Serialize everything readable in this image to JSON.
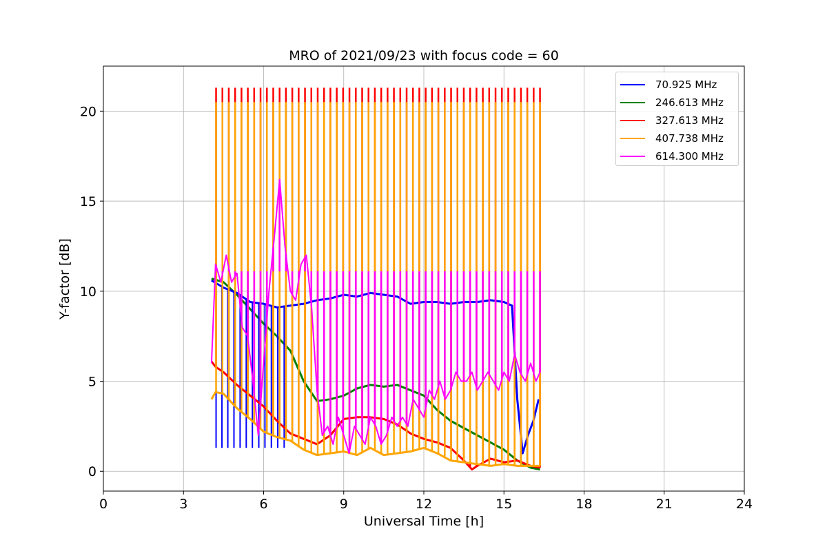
{
  "chart_data": {
    "type": "line",
    "title": "MRO of 2021/09/23 with focus code = 60",
    "xlabel": "Universal Time [h]",
    "ylabel": "Y-factor [dB]",
    "xlim": [
      0,
      24
    ],
    "ylim": [
      -1.1,
      22.5
    ],
    "xticks": [
      0,
      3,
      6,
      9,
      12,
      15,
      18,
      21,
      24
    ],
    "yticks": [
      0,
      5,
      10,
      15,
      20
    ],
    "grid": true,
    "legend_position": "top-right",
    "calibration_pulses": {
      "start": 4.22,
      "end": 16.35,
      "count": 52,
      "peak_dB": {
        "327.613 MHz": 21.3,
        "407.738 MHz": 20.5,
        "614.300 MHz": 11.1
      }
    },
    "series": [
      {
        "name": "70.925 MHz",
        "color": "#0000ff",
        "x": [
          4.05,
          4.5,
          5.0,
          5.5,
          6.0,
          6.5,
          7.0,
          7.5,
          8.0,
          8.5,
          9.0,
          9.5,
          10.0,
          10.5,
          11.0,
          11.5,
          12.0,
          12.5,
          13.0,
          13.5,
          14.0,
          14.5,
          15.0,
          15.3,
          15.5,
          15.7,
          15.9,
          16.1,
          16.3
        ],
        "y": [
          10.6,
          10.2,
          9.9,
          9.4,
          9.3,
          9.1,
          9.2,
          9.3,
          9.5,
          9.6,
          9.8,
          9.7,
          9.9,
          9.8,
          9.7,
          9.3,
          9.4,
          9.4,
          9.3,
          9.4,
          9.4,
          9.5,
          9.4,
          9.2,
          4.0,
          1.0,
          2.0,
          2.8,
          4.0
        ],
        "dips": {
          "x": [
            4.22,
            4.44,
            4.66,
            4.89,
            5.12,
            5.35,
            5.58,
            5.82,
            6.05,
            6.29,
            6.53,
            6.77
          ],
          "y": 1.3
        }
      },
      {
        "name": "246.613 MHz",
        "color": "#008000",
        "x": [
          4.05,
          4.5,
          5.0,
          5.5,
          6.0,
          6.5,
          7.0,
          7.5,
          8.0,
          8.5,
          9.0,
          9.5,
          10.0,
          10.5,
          11.0,
          11.5,
          12.0,
          12.5,
          13.0,
          13.5,
          14.0,
          14.5,
          15.0,
          15.5,
          16.0,
          16.35
        ],
        "y": [
          10.7,
          10.5,
          9.8,
          9.0,
          8.2,
          7.5,
          6.7,
          5.0,
          3.9,
          4.0,
          4.2,
          4.6,
          4.8,
          4.7,
          4.8,
          4.5,
          4.2,
          3.4,
          2.8,
          2.4,
          2.0,
          1.6,
          1.2,
          0.6,
          0.2,
          0.1
        ]
      },
      {
        "name": "327.613 MHz",
        "color": "#ff0000",
        "x": [
          4.05,
          4.2,
          4.5,
          5.0,
          5.5,
          6.0,
          6.5,
          7.0,
          7.5,
          8.0,
          8.5,
          9.0,
          9.5,
          10.0,
          10.5,
          11.0,
          11.5,
          12.0,
          12.5,
          13.0,
          13.5,
          13.8,
          14.0,
          14.5,
          15.0,
          15.5,
          16.0,
          16.35
        ],
        "y": [
          6.1,
          5.8,
          5.5,
          4.8,
          4.2,
          3.6,
          2.8,
          2.1,
          1.8,
          1.5,
          2.0,
          2.9,
          3.0,
          3.0,
          2.9,
          2.6,
          2.1,
          1.8,
          1.6,
          1.3,
          0.6,
          0.1,
          0.3,
          0.7,
          0.5,
          0.6,
          0.3,
          0.2
        ]
      },
      {
        "name": "407.738 MHz",
        "color": "#ffa500",
        "x": [
          4.05,
          4.2,
          4.5,
          5.0,
          5.5,
          6.0,
          6.5,
          7.0,
          7.5,
          8.0,
          8.5,
          9.0,
          9.5,
          10.0,
          10.5,
          11.0,
          11.5,
          12.0,
          12.5,
          13.0,
          13.5,
          14.0,
          14.5,
          15.0,
          15.5,
          16.0,
          16.35
        ],
        "y": [
          4.0,
          4.4,
          4.3,
          3.5,
          2.9,
          2.2,
          1.9,
          1.7,
          1.2,
          0.9,
          1.0,
          1.1,
          0.9,
          1.3,
          0.9,
          1.0,
          1.1,
          1.3,
          1.0,
          0.6,
          0.5,
          0.4,
          0.3,
          0.4,
          0.3,
          0.3,
          0.3
        ]
      },
      {
        "name": "614.300 MHz",
        "color": "#ff00ff",
        "x": [
          4.05,
          4.2,
          4.4,
          4.6,
          4.8,
          5.0,
          5.2,
          5.4,
          5.6,
          5.8,
          6.0,
          6.2,
          6.4,
          6.6,
          6.8,
          7.0,
          7.2,
          7.4,
          7.6,
          7.8,
          8.0,
          8.2,
          8.4,
          8.6,
          8.8,
          9.0,
          9.2,
          9.4,
          9.6,
          9.8,
          10.0,
          10.2,
          10.4,
          10.6,
          10.8,
          11.0,
          11.2,
          11.4,
          11.6,
          11.8,
          12.0,
          12.2,
          12.4,
          12.6,
          12.8,
          13.0,
          13.2,
          13.4,
          13.6,
          13.8,
          14.0,
          14.2,
          14.4,
          14.6,
          14.8,
          15.0,
          15.2,
          15.4,
          15.6,
          15.8,
          16.0,
          16.2,
          16.35
        ],
        "y": [
          6.0,
          11.5,
          10.5,
          12.0,
          10.5,
          11.0,
          8.0,
          7.5,
          5.0,
          2.0,
          6.0,
          10.0,
          13.0,
          16.2,
          12.5,
          10.0,
          9.5,
          11.5,
          12.0,
          9.0,
          4.5,
          2.0,
          2.5,
          1.5,
          3.0,
          2.0,
          1.0,
          2.5,
          2.0,
          1.5,
          3.0,
          2.5,
          1.5,
          2.0,
          3.0,
          2.5,
          3.0,
          2.5,
          4.0,
          3.5,
          3.0,
          4.5,
          4.0,
          5.0,
          4.0,
          4.5,
          5.5,
          5.0,
          5.0,
          5.5,
          4.5,
          5.0,
          5.5,
          5.0,
          4.5,
          5.5,
          5.0,
          6.5,
          5.5,
          5.0,
          6.0,
          5.0,
          5.5
        ]
      }
    ]
  }
}
